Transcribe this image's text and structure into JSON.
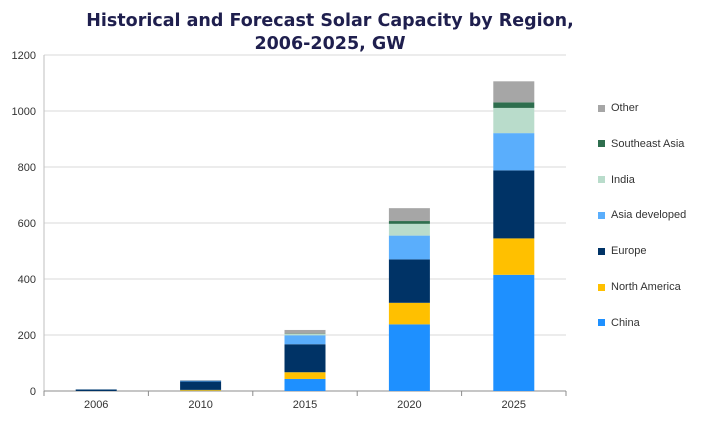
{
  "chart_data": {
    "type": "bar",
    "stacked": true,
    "title": "Historical and Forecast Solar Capacity by Region, 2006-2025, GW",
    "xlabel": "",
    "ylabel": "",
    "ylim": [
      0,
      1200
    ],
    "yticks": [
      0,
      200,
      400,
      600,
      800,
      1000,
      1200
    ],
    "grid": true,
    "legend_position": "right",
    "categories": [
      "2006",
      "2010",
      "2015",
      "2020",
      "2025"
    ],
    "series": [
      {
        "name": "China",
        "color": "#1e90ff",
        "values": [
          0,
          1,
          43,
          238,
          415
        ]
      },
      {
        "name": "North America",
        "color": "#ffc000",
        "values": [
          0,
          3,
          24,
          77,
          130
        ]
      },
      {
        "name": "Europe",
        "color": "#003366",
        "values": [
          5,
          30,
          100,
          155,
          243
        ]
      },
      {
        "name": "Asia developed",
        "color": "#5aaefc",
        "values": [
          1,
          3,
          32,
          85,
          133
        ]
      },
      {
        "name": "India",
        "color": "#b9dccb",
        "values": [
          0,
          0,
          5,
          42,
          90
        ]
      },
      {
        "name": "Southeast Asia",
        "color": "#2e6e4e",
        "values": [
          0,
          0,
          1,
          10,
          20
        ]
      },
      {
        "name": "Other",
        "color": "#a6a6a6",
        "values": [
          1,
          2,
          13,
          46,
          75
        ]
      }
    ],
    "legend_order": [
      "Other",
      "Southeast Asia",
      "India",
      "Asia developed",
      "Europe",
      "North America",
      "China"
    ]
  }
}
